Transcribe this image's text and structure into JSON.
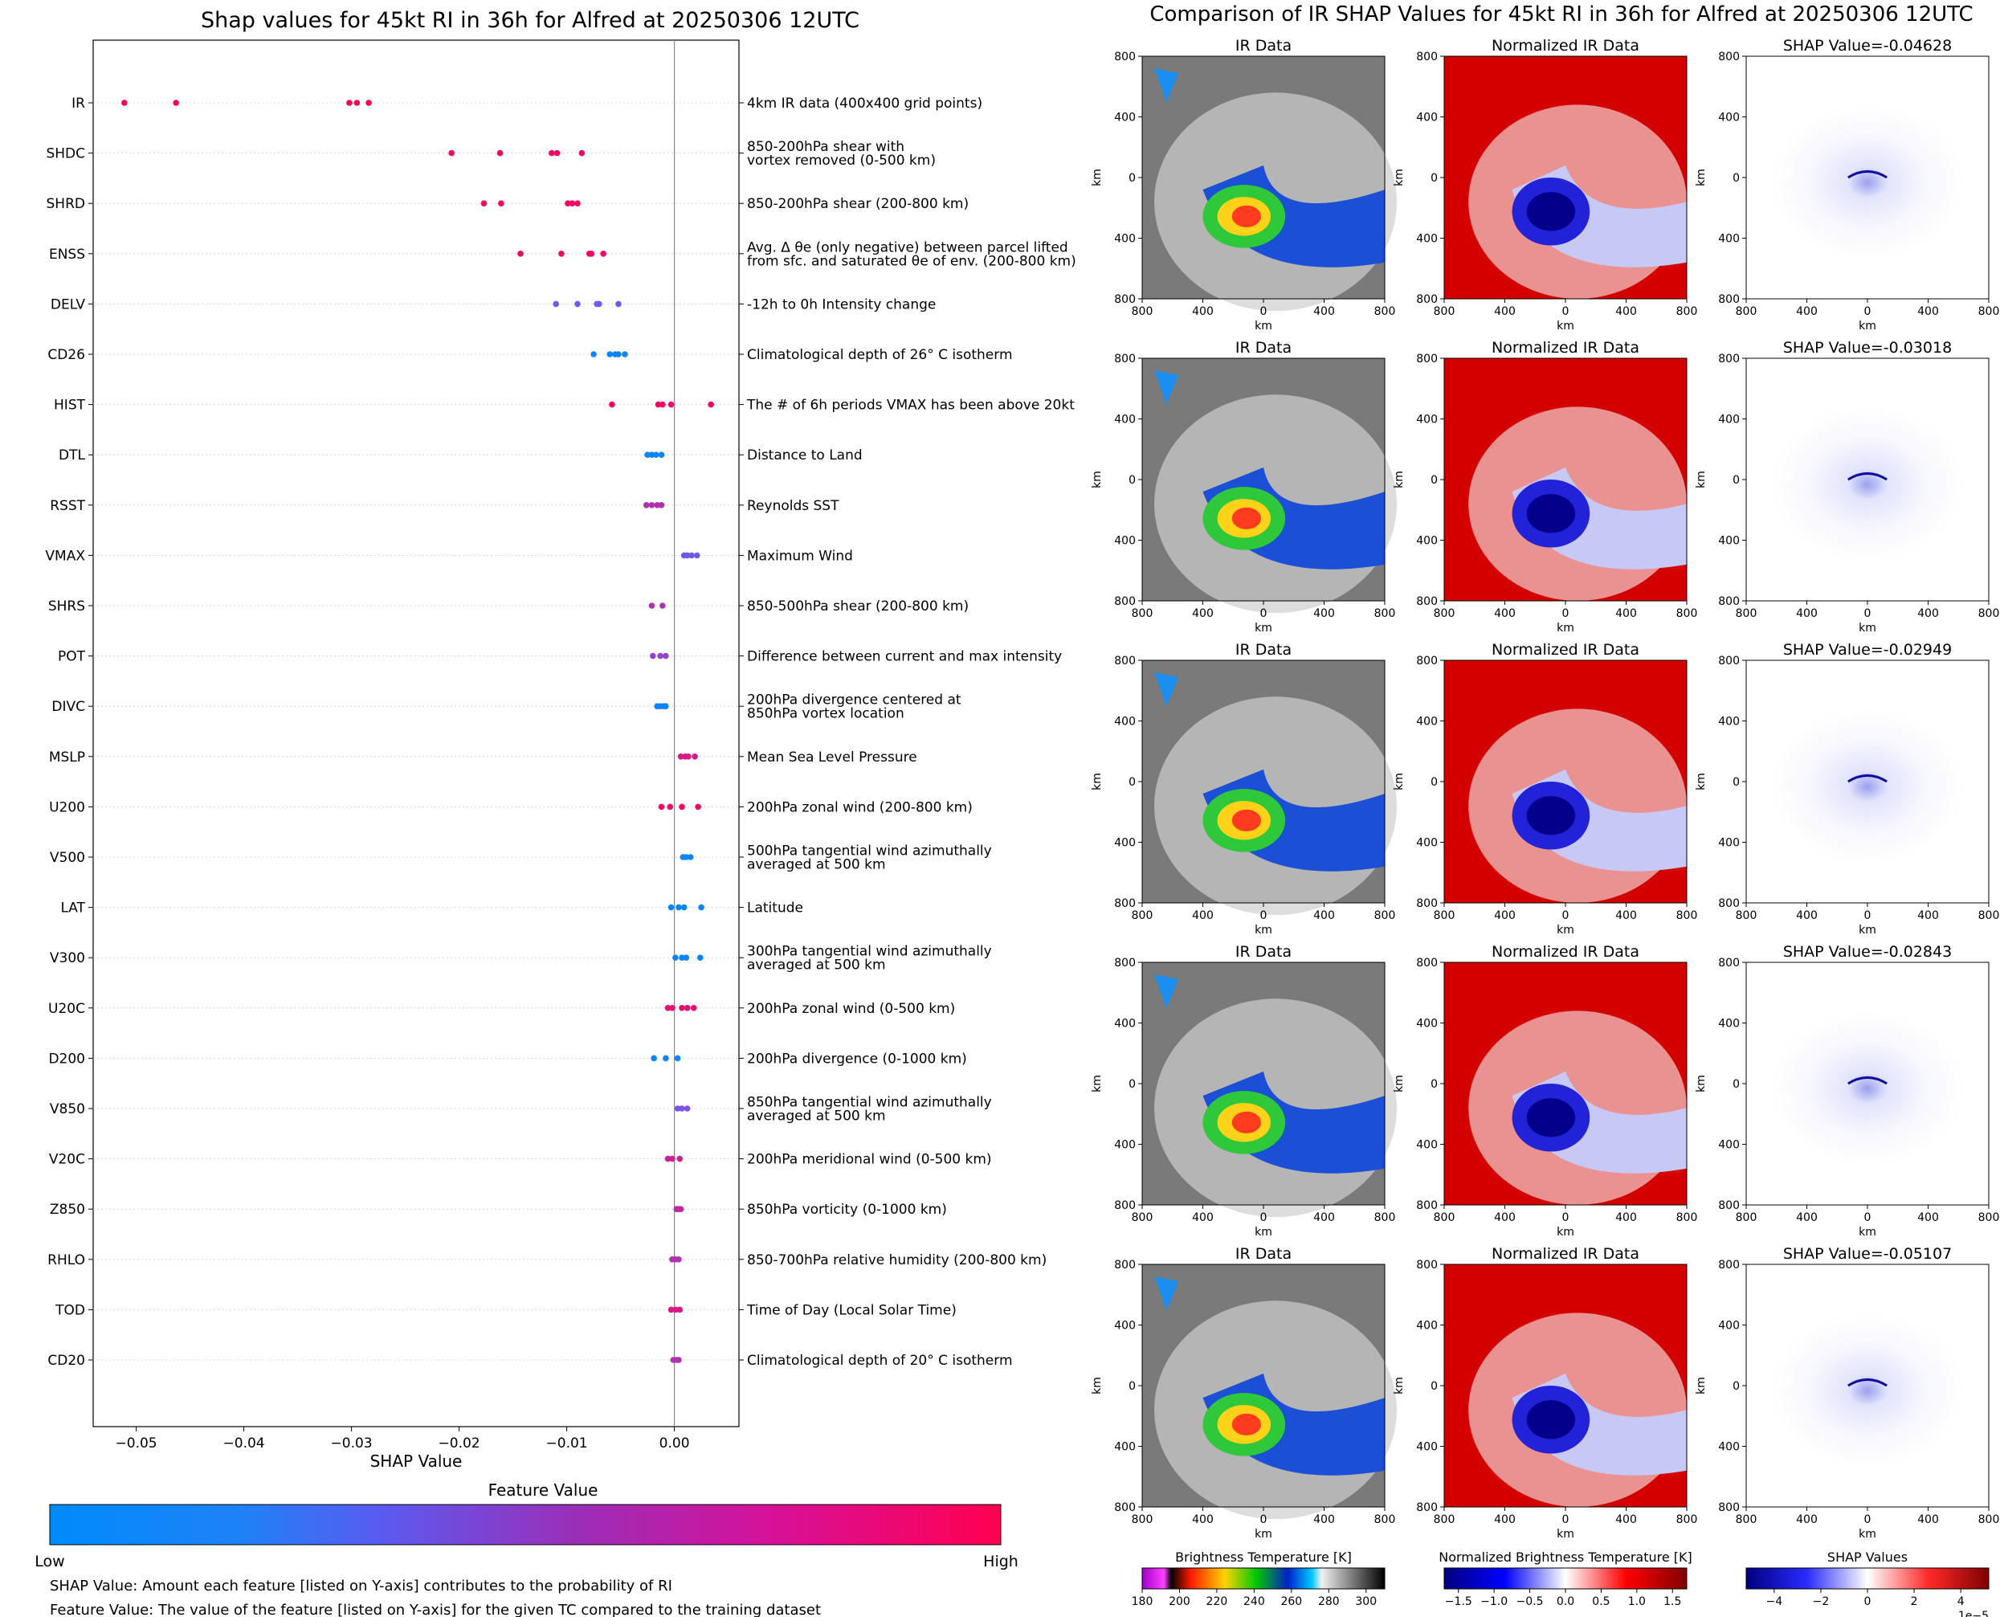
{
  "left": {
    "title": "Shap values for 45kt RI in 36h for Alfred at 20250306 12UTC",
    "xlabel": "SHAP Value",
    "colorbar_title": "Feature Value",
    "colorbar_low": "Low",
    "colorbar_high": "High",
    "notes": [
      "SHAP Value: Amount each feature [listed on Y-axis] contributes to the probability of RI",
      "Feature Value: The value of the feature [listed on Y-axis] for the given TC compared to the training dataset"
    ],
    "colors": {
      "low": "#008bfb",
      "mid": "#7c52f0",
      "high": "#ff0051"
    }
  },
  "right": {
    "title": "Comparison of IR SHAP Values for 45kt RI in 36h for Alfred at 20250306 12UTC",
    "col_titles": [
      "IR Data",
      "Normalized IR Data"
    ],
    "shap_titles": [
      "SHAP Value=-0.04628",
      "SHAP Value=-0.03018",
      "SHAP Value=-0.02949",
      "SHAP Value=-0.02843",
      "SHAP Value=-0.05107"
    ],
    "axis_unit": "km",
    "ticks": [
      "800",
      "400",
      "0",
      "400",
      "800"
    ],
    "colorbars": [
      {
        "title": "Brightness Temperature [K]",
        "ticks": [
          "180",
          "200",
          "220",
          "240",
          "260",
          "280",
          "300"
        ],
        "range": [
          180,
          310
        ]
      },
      {
        "title": "Normalized Brightness Temperature [K]",
        "ticks": [
          "−1.5",
          "−1.0",
          "−0.5",
          "0.0",
          "0.5",
          "1.0",
          "1.5"
        ],
        "range": [
          -1.7,
          1.7
        ]
      },
      {
        "title": "SHAP Values",
        "ticks": [
          "−4",
          "−2",
          "0",
          "2",
          "4"
        ],
        "range": [
          -5.2,
          5.2
        ],
        "exponent": "1e−5"
      }
    ]
  },
  "chart_data": [
    {
      "type": "scatter",
      "title": "Shap values for 45kt RI in 36h for Alfred at 20250306 12UTC",
      "xlabel": "SHAP Value",
      "xlim": [
        -0.054,
        0.006
      ],
      "xticks": [
        -0.05,
        -0.04,
        -0.03,
        -0.02,
        -0.01,
        0.0
      ],
      "xtick_labels": [
        "−0.05",
        "−0.04",
        "−0.03",
        "−0.02",
        "−0.01",
        "0.00"
      ],
      "features": [
        {
          "name": "IR",
          "desc": [
            "4km IR data (400x400 grid points)"
          ],
          "values": [
            -0.0511,
            -0.0463,
            -0.0302,
            -0.0295,
            -0.0284
          ],
          "fv": [
            1.0,
            1.0,
            1.0,
            1.0,
            1.0
          ]
        },
        {
          "name": "SHDC",
          "desc": [
            "850-200hPa shear with",
            "vortex removed (0-500 km)"
          ],
          "values": [
            -0.0207,
            -0.0162,
            -0.0114,
            -0.0109,
            -0.0086
          ],
          "fv": [
            0.95,
            0.95,
            0.95,
            0.95,
            0.95
          ]
        },
        {
          "name": "SHRD",
          "desc": [
            "850-200hPa shear (200-800 km)"
          ],
          "values": [
            -0.0177,
            -0.0161,
            -0.0099,
            -0.0095,
            -0.009
          ],
          "fv": [
            0.95,
            0.95,
            0.95,
            0.95,
            0.95
          ]
        },
        {
          "name": "ENSS",
          "desc": [
            "Avg. Δ θe (only negative) between parcel lifted",
            "from sfc. and saturated θe of env. (200-800 km)"
          ],
          "values": [
            -0.0143,
            -0.0105,
            -0.0079,
            -0.0077,
            -0.0066
          ],
          "fv": [
            0.95,
            0.95,
            0.95,
            0.95,
            0.95
          ]
        },
        {
          "name": "DELV",
          "desc": [
            "-12h to 0h Intensity change"
          ],
          "values": [
            -0.011,
            -0.009,
            -0.0072,
            -0.007,
            -0.0052
          ],
          "fv": [
            0.45,
            0.45,
            0.45,
            0.45,
            0.45
          ]
        },
        {
          "name": "CD26",
          "desc": [
            "Climatological depth of 26° C isotherm"
          ],
          "values": [
            -0.0075,
            -0.006,
            -0.0055,
            -0.0052,
            -0.0046
          ],
          "fv": [
            0.05,
            0.05,
            0.05,
            0.05,
            0.05
          ]
        },
        {
          "name": "HIST",
          "desc": [
            "The # of 6h periods VMAX has been above 20kt"
          ],
          "values": [
            -0.0058,
            -0.0015,
            -0.0011,
            -0.0003,
            0.0034
          ],
          "fv": [
            0.95,
            0.95,
            0.95,
            0.95,
            0.95
          ]
        },
        {
          "name": "DTL",
          "desc": [
            "Distance to Land"
          ],
          "values": [
            -0.0025,
            -0.0021,
            -0.0017,
            -0.0012
          ],
          "fv": [
            0.05,
            0.05,
            0.05,
            0.05
          ]
        },
        {
          "name": "RSST",
          "desc": [
            "Reynolds SST"
          ],
          "values": [
            -0.0026,
            -0.0021,
            -0.0016,
            -0.0012
          ],
          "fv": [
            0.7,
            0.7,
            0.7,
            0.7
          ]
        },
        {
          "name": "VMAX",
          "desc": [
            "Maximum Wind"
          ],
          "values": [
            0.0009,
            0.0012,
            0.0016,
            0.0021
          ],
          "fv": [
            0.45,
            0.45,
            0.45,
            0.45
          ]
        },
        {
          "name": "SHRS",
          "desc": [
            "850-500hPa shear (200-800 km)"
          ],
          "values": [
            -0.0021,
            -0.0011
          ],
          "fv": [
            0.7,
            0.7
          ]
        },
        {
          "name": "POT",
          "desc": [
            "Difference between current and max intensity"
          ],
          "values": [
            -0.002,
            -0.0013,
            -0.0008
          ],
          "fv": [
            0.6,
            0.6,
            0.6
          ]
        },
        {
          "name": "DIVC",
          "desc": [
            "200hPa divergence centered at",
            "850hPa vortex location"
          ],
          "values": [
            -0.0016,
            -0.0013,
            -0.001,
            -0.0008
          ],
          "fv": [
            0.05,
            0.05,
            0.05,
            0.05
          ]
        },
        {
          "name": "MSLP",
          "desc": [
            "Mean Sea Level Pressure"
          ],
          "values": [
            0.0006,
            0.001,
            0.0013,
            0.0019
          ],
          "fv": [
            0.85,
            0.85,
            0.85,
            0.85
          ]
        },
        {
          "name": "U200",
          "desc": [
            "200hPa zonal wind (200-800 km)"
          ],
          "values": [
            -0.0012,
            -0.0004,
            0.0007,
            0.0022
          ],
          "fv": [
            0.95,
            0.95,
            0.95,
            0.95
          ]
        },
        {
          "name": "V500",
          "desc": [
            "500hPa tangential wind azimuthally",
            "averaged at 500 km"
          ],
          "values": [
            0.0008,
            0.0011,
            0.0015
          ],
          "fv": [
            0.05,
            0.05,
            0.05
          ]
        },
        {
          "name": "LAT",
          "desc": [
            "Latitude"
          ],
          "values": [
            -0.0003,
            0.0004,
            0.0009,
            0.0025
          ],
          "fv": [
            0.05,
            0.05,
            0.05,
            0.05
          ]
        },
        {
          "name": "V300",
          "desc": [
            "300hPa tangential wind azimuthally",
            "averaged at 500 km"
          ],
          "values": [
            0.0001,
            0.0007,
            0.0011,
            0.0024
          ],
          "fv": [
            0.05,
            0.05,
            0.05,
            0.05
          ]
        },
        {
          "name": "U20C",
          "desc": [
            "200hPa zonal wind (0-500 km)"
          ],
          "values": [
            -0.0006,
            -0.0002,
            0.0007,
            0.0012,
            0.0018
          ],
          "fv": [
            0.9,
            0.9,
            0.9,
            0.9,
            0.9
          ]
        },
        {
          "name": "D200",
          "desc": [
            "200hPa divergence (0-1000 km)"
          ],
          "values": [
            -0.0019,
            -0.0008,
            0.0003
          ],
          "fv": [
            0.05,
            0.05,
            0.05
          ]
        },
        {
          "name": "V850",
          "desc": [
            "850hPa tangential wind azimuthally",
            "averaged at 500 km"
          ],
          "values": [
            0.0003,
            0.0007,
            0.0012
          ],
          "fv": [
            0.5,
            0.5,
            0.5
          ]
        },
        {
          "name": "V20C",
          "desc": [
            "200hPa meridional wind (0-500 km)"
          ],
          "values": [
            -0.0006,
            -0.0002,
            0.0005
          ],
          "fv": [
            0.8,
            0.8,
            0.8
          ]
        },
        {
          "name": "Z850",
          "desc": [
            "850hPa vorticity (0-1000 km)"
          ],
          "values": [
            0.0002,
            0.0004,
            0.0006
          ],
          "fv": [
            0.75,
            0.75,
            0.75
          ]
        },
        {
          "name": "RHLO",
          "desc": [
            "850-700hPa relative humidity (200-800 km)"
          ],
          "values": [
            -0.0002,
            0.0001,
            0.0004
          ],
          "fv": [
            0.7,
            0.7,
            0.7
          ]
        },
        {
          "name": "TOD",
          "desc": [
            "Time of Day (Local Solar Time)"
          ],
          "values": [
            -0.0003,
            0.0001,
            0.0005
          ],
          "fv": [
            0.85,
            0.85,
            0.85
          ]
        },
        {
          "name": "CD20",
          "desc": [
            "Climatological depth of 20° C isotherm"
          ],
          "values": [
            -0.0001,
            0.0002,
            0.0004
          ],
          "fv": [
            0.7,
            0.7,
            0.7
          ]
        }
      ]
    },
    {
      "type": "heatmap",
      "title": "Comparison of IR SHAP Values for 45kt RI in 36h for Alfred at 20250306 12UTC",
      "xlabel": "km",
      "ylabel": "km"
    }
  ]
}
